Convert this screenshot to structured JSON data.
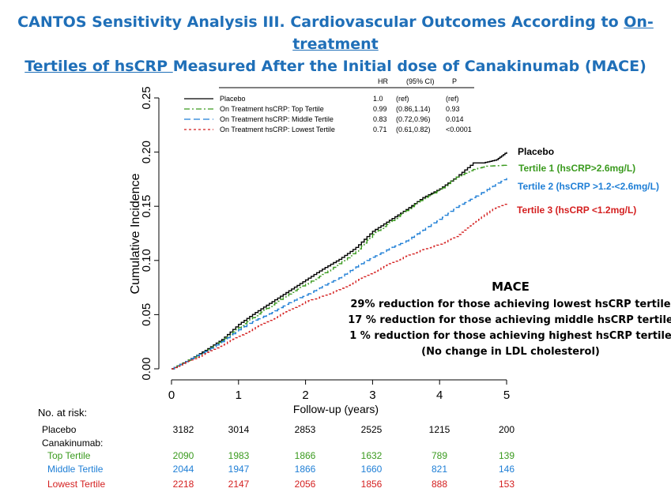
{
  "title": {
    "line1_prefix": "CANTOS Sensitivity Analysis III. Cardiovascular Outcomes According to ",
    "line1_link": "On-treatment",
    "line2_link": "Tertiles of hsCRP ",
    "line2_suffix": "Measured After the Initial dose of Canakinumab (MACE)"
  },
  "colors": {
    "title": "#1f6fb8",
    "placebo": "#000000",
    "top": "#3a9a1e",
    "middle": "#1f7fd6",
    "lowest": "#d41f1f"
  },
  "chart_data": {
    "type": "line",
    "xlabel": "Follow-up (years)",
    "ylabel": "Cumulative Incidence",
    "xlim": [
      0,
      5
    ],
    "ylim": [
      0,
      0.25
    ],
    "xticks": [
      "0",
      "1",
      "2",
      "3",
      "4",
      "5"
    ],
    "yticks": [
      "0.00",
      "0.05",
      "0.10",
      "0.15",
      "0.20",
      "0.25"
    ],
    "ytick_values": [
      0,
      0.05,
      0.1,
      0.15,
      0.2,
      0.25
    ],
    "legend": {
      "headers": [
        "HR",
        "(95% CI)",
        "P"
      ],
      "rows": [
        {
          "label": "Placebo",
          "hr": "1.0",
          "ci": "(ref)",
          "p": "(ref)",
          "dash": ""
        },
        {
          "label": "On Treatment hsCRP: Top Tertile",
          "hr": "0.99",
          "ci": "(0.86,1.14)",
          "p": "0.93",
          "dash": "7,3,2,3"
        },
        {
          "label": "On Treatment hsCRP: Middle Tertile",
          "hr": "0.83",
          "ci": "(0.72,0.96)",
          "p": "0.014",
          "dash": "8,4"
        },
        {
          "label": "On Treatment hsCRP: Lowest Tertile",
          "hr": "0.71",
          "ci": "(0.61,0.82)",
          "p": "<0.0001",
          "dash": "3,3"
        }
      ]
    },
    "series": [
      {
        "name": "Placebo",
        "color": "#000000",
        "dash": "",
        "x": [
          0,
          0.25,
          0.5,
          0.75,
          1,
          1.25,
          1.5,
          1.75,
          2,
          2.25,
          2.5,
          2.75,
          3,
          3.25,
          3.5,
          3.75,
          4,
          4.25,
          4.5,
          4.65,
          4.85,
          5.0
        ],
        "y": [
          0,
          0.008,
          0.017,
          0.027,
          0.041,
          0.052,
          0.062,
          0.072,
          0.082,
          0.092,
          0.101,
          0.112,
          0.127,
          0.137,
          0.147,
          0.158,
          0.166,
          0.177,
          0.19,
          0.19,
          0.193,
          0.2
        ]
      },
      {
        "name": "Top Tertile",
        "color": "#3a9a1e",
        "dash": "7,3,2,3",
        "x": [
          0,
          0.25,
          0.5,
          0.75,
          1,
          1.25,
          1.5,
          1.75,
          2,
          2.25,
          2.5,
          2.75,
          3,
          3.25,
          3.5,
          3.75,
          4,
          4.25,
          4.5,
          4.7,
          5.0
        ],
        "y": [
          0,
          0.008,
          0.016,
          0.026,
          0.038,
          0.049,
          0.059,
          0.069,
          0.078,
          0.087,
          0.097,
          0.108,
          0.124,
          0.135,
          0.146,
          0.157,
          0.165,
          0.177,
          0.184,
          0.187,
          0.188
        ]
      },
      {
        "name": "Middle Tertile",
        "color": "#1f7fd6",
        "dash": "8,4",
        "x": [
          0,
          0.25,
          0.5,
          0.75,
          1,
          1.25,
          1.5,
          1.75,
          2,
          2.25,
          2.5,
          2.75,
          3,
          3.25,
          3.5,
          3.75,
          4,
          4.25,
          4.5,
          4.75,
          5.0
        ],
        "y": [
          0,
          0.008,
          0.016,
          0.025,
          0.036,
          0.045,
          0.052,
          0.061,
          0.068,
          0.076,
          0.084,
          0.094,
          0.103,
          0.111,
          0.118,
          0.128,
          0.138,
          0.149,
          0.158,
          0.167,
          0.176
        ]
      },
      {
        "name": "Lowest Tertile",
        "color": "#d41f1f",
        "dash": "3,3",
        "x": [
          0,
          0.25,
          0.5,
          0.75,
          1,
          1.25,
          1.5,
          1.75,
          2,
          2.25,
          2.5,
          2.75,
          3,
          3.25,
          3.5,
          3.75,
          4,
          4.25,
          4.5,
          4.75,
          5.0
        ],
        "y": [
          0,
          0.007,
          0.014,
          0.022,
          0.03,
          0.038,
          0.046,
          0.054,
          0.062,
          0.067,
          0.073,
          0.081,
          0.089,
          0.097,
          0.104,
          0.11,
          0.115,
          0.122,
          0.134,
          0.146,
          0.153
        ]
      }
    ],
    "end_labels": [
      {
        "text": "Placebo",
        "color": "#000000",
        "y": 0.2
      },
      {
        "text": "Tertile 1 (hsCRP>2.6mg/L)",
        "color": "#3a9a1e",
        "y": 0.188
      },
      {
        "text": "Tertile 2 (hsCRP >1.2-<2.6mg/L)",
        "color": "#1f7fd6",
        "y": 0.172
      },
      {
        "text": "Tertile 3 (hsCRP <1.2mg/L)",
        "color": "#d41f1f",
        "y": 0.152
      }
    ],
    "annotation": [
      "MACE",
      "29% reduction for those achieving lowest hsCRP tertile",
      "17 % reduction for those achieving middle hsCRP tertile",
      "1 % reduction for those achieving highest hsCRP tertile",
      "(No change in LDL cholesterol)"
    ]
  },
  "risk_table": {
    "heading": "No. at risk:",
    "group_label": "Canakinumab:",
    "rows": [
      {
        "label": "Placebo",
        "color": "#000000",
        "values": [
          "3182",
          "3014",
          "2853",
          "2525",
          "1215",
          "200"
        ]
      },
      {
        "label": "Top Tertile",
        "color": "#3a9a1e",
        "values": [
          "2090",
          "1983",
          "1866",
          "1632",
          "789",
          "139"
        ]
      },
      {
        "label": "Middle Tertile",
        "color": "#1f7fd6",
        "values": [
          "2044",
          "1947",
          "1866",
          "1660",
          "821",
          "146"
        ]
      },
      {
        "label": "Lowest Tertile",
        "color": "#d41f1f",
        "values": [
          "2218",
          "2147",
          "2056",
          "1856",
          "888",
          "153"
        ]
      }
    ]
  }
}
